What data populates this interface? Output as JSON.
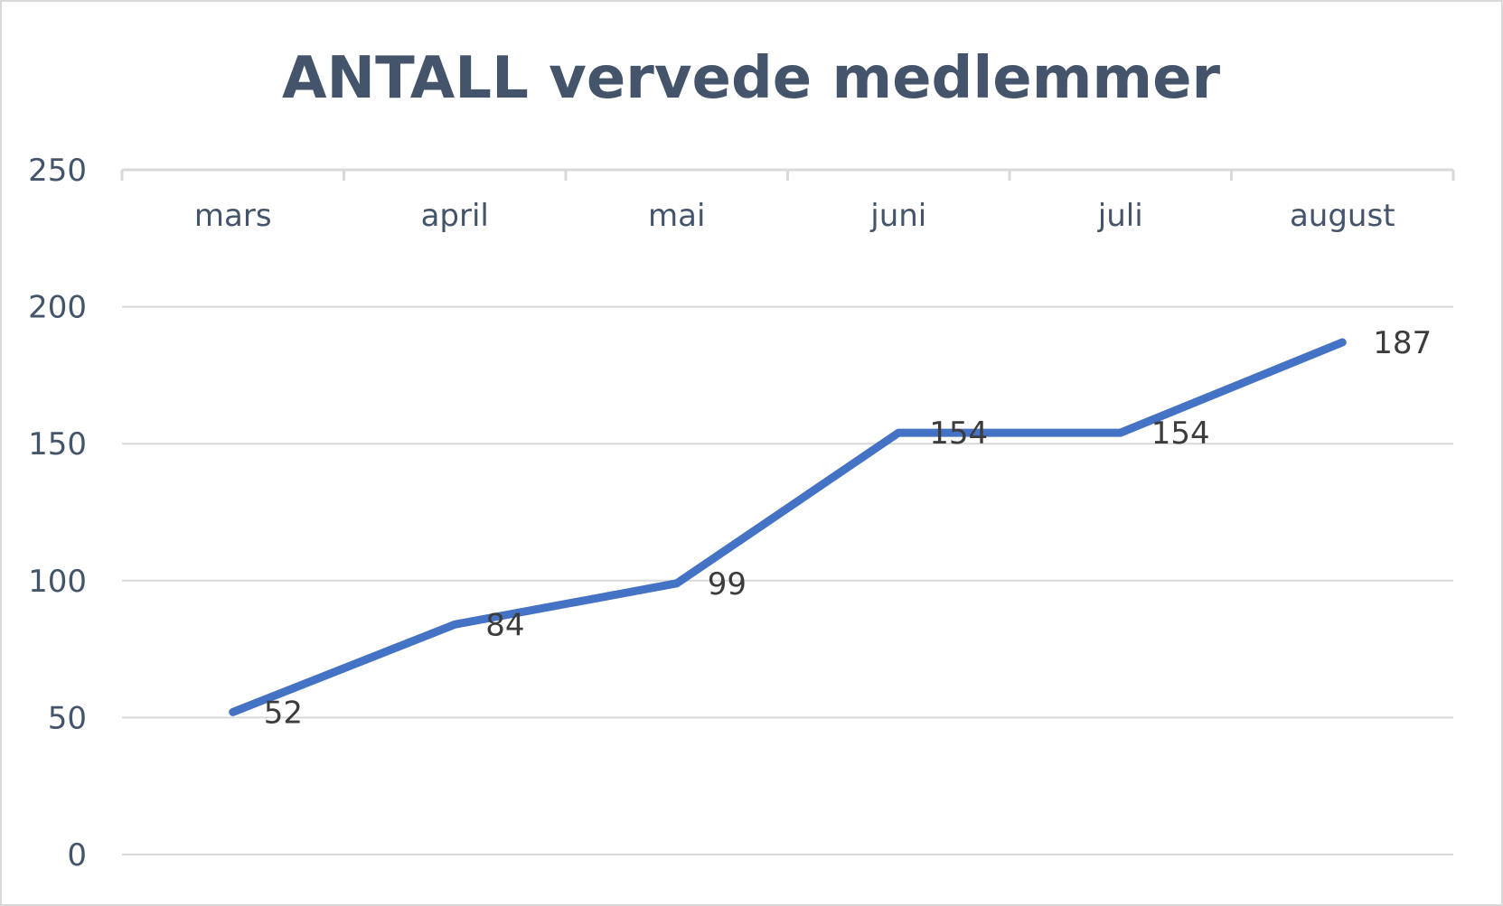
{
  "chart_data": {
    "type": "line",
    "title": "ANTALL vervede medlemmer",
    "xlabel": "",
    "ylabel": "",
    "categories": [
      "mars",
      "april",
      "mai",
      "juni",
      "juli",
      "august"
    ],
    "series": [
      {
        "values": [
          52,
          84,
          99,
          154,
          154,
          187
        ],
        "color": "#4472c4"
      }
    ],
    "ylim": [
      0,
      250
    ],
    "yticks": [
      "0",
      "50",
      "100",
      "150",
      "200",
      "250"
    ],
    "category_axis_position": "top",
    "data_labels": true,
    "grid": true,
    "legend": "none"
  }
}
